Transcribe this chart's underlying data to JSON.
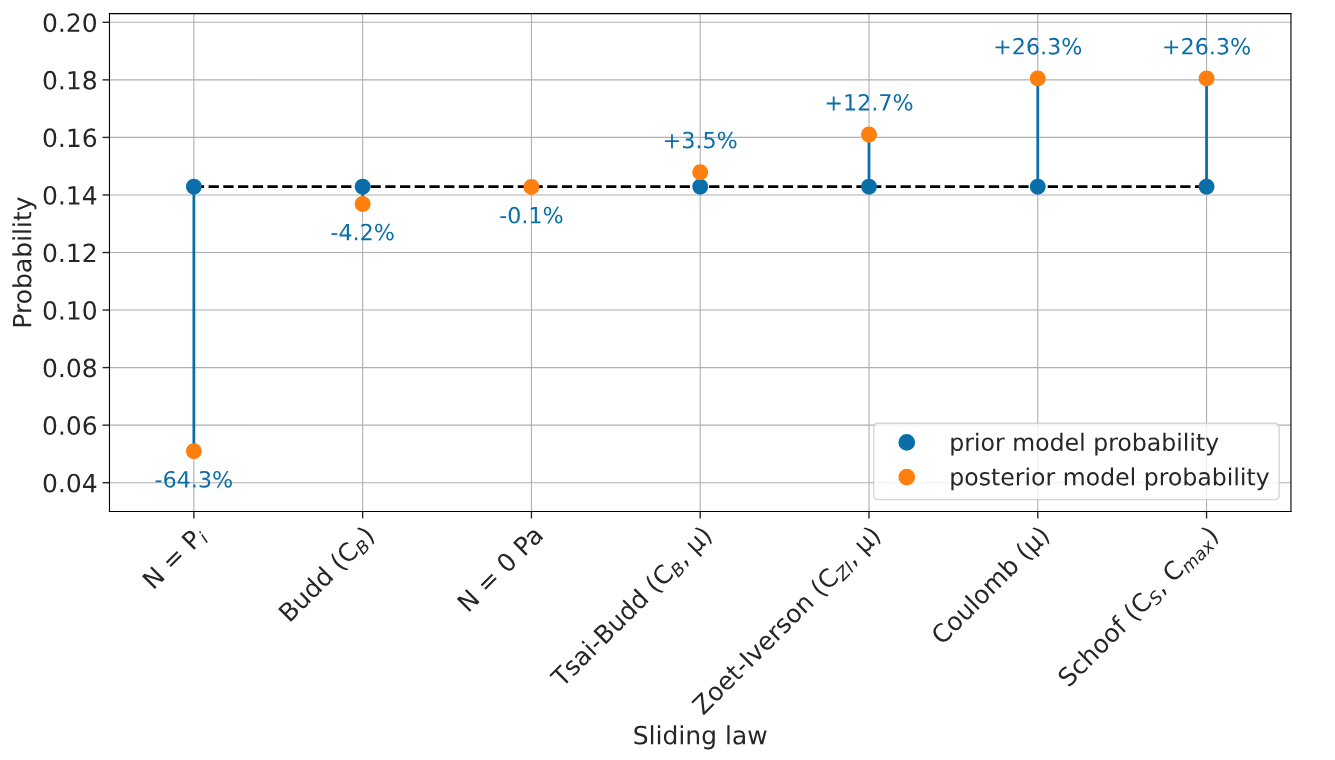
{
  "chart_data": {
    "type": "scatter",
    "xlabel": "Sliding law",
    "ylabel": "Probability",
    "categories": [
      "N = P$_{i}$",
      "Budd (C$_{B}$)",
      "N = 0 Pa",
      "Tsai-Budd (C$_{B}$, μ)",
      "Zoet-Iverson (C$_{ZI}$, μ)",
      "Coulomb (μ)",
      "Schoof (C$_{S}$, C$_{max}$)"
    ],
    "series": [
      {
        "name": "prior model probability",
        "color": "#0a6fa8",
        "values": [
          0.1429,
          0.1429,
          null,
          0.1429,
          0.1429,
          0.1429,
          0.1429
        ]
      },
      {
        "name": "posterior model probability",
        "color": "#ff7f0e",
        "type": "lollipop",
        "values": [
          0.051,
          0.1369,
          0.1428,
          0.1479,
          0.161,
          0.1805,
          0.1805
        ]
      }
    ],
    "ref_lines": [
      {
        "axis": "y",
        "value": 0.1429,
        "color": "#000000",
        "line_style": "dashed"
      }
    ],
    "annotations": [
      {
        "text": "-64.3%",
        "x": "N = P$_{i}$",
        "y": 0.051
      },
      {
        "text": "-4.2%",
        "x": "Budd (C$_{B}$)",
        "y": 0.1369
      },
      {
        "text": "-0.1%",
        "x": "N = 0 Pa",
        "y": 0.1428
      },
      {
        "text": "+3.5%",
        "x": "Tsai-Budd (C$_{B}$, μ)",
        "y": 0.1479
      },
      {
        "text": "+12.7%",
        "x": "Zoet-Iverson (C$_{ZI}$, μ)",
        "y": 0.161
      },
      {
        "text": "+26.3%",
        "x": "Coulomb (μ)",
        "y": 0.1805
      },
      {
        "text": "+26.3%",
        "x": "Schoof (C$_{S}$, C$_{max}$)",
        "y": 0.1805
      }
    ],
    "ylim": [
      0.03,
      0.203
    ],
    "yticks": [
      {
        "value": 0.04,
        "label": "0.04"
      },
      {
        "value": 0.06,
        "label": "0.06"
      },
      {
        "value": 0.08,
        "label": "0.08"
      },
      {
        "value": 0.1,
        "label": "0.10"
      },
      {
        "value": 0.12,
        "label": "0.12"
      },
      {
        "value": 0.14,
        "label": "0.14"
      },
      {
        "value": 0.16,
        "label": "0.16"
      },
      {
        "value": 0.18,
        "label": "0.18"
      },
      {
        "value": 0.2,
        "label": "0.20"
      }
    ],
    "grid": true,
    "legend": "bottom right",
    "marker": "circle"
  }
}
